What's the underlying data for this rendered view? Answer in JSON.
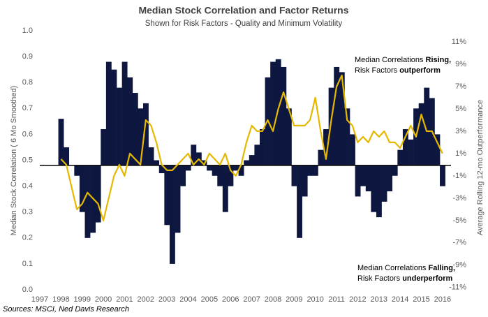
{
  "chart_data": {
    "type": "bar",
    "title": "Median Stock Correlation and Factor Returns",
    "subtitle": "Shown for Risk Factors - Quality and Minimum Volatility",
    "ylabel": "Median Stock Correlation ( 6 Mo Smoothed)",
    "y2label": "Average Rolling 12-mo Outperformance",
    "source": "Sources: MSCI, Ned Davis Research",
    "baseline": 0.48,
    "xlim": [
      1997,
      2016.4
    ],
    "xticks": [
      1997,
      1998,
      1999,
      2000,
      2001,
      2002,
      2003,
      2004,
      2005,
      2006,
      2007,
      2008,
      2009,
      2010,
      2011,
      2012,
      2013,
      2014,
      2015,
      2016
    ],
    "ylim": [
      0,
      1
    ],
    "yticks": [
      {
        "value": 0,
        "label": "0.0"
      },
      0.1,
      0.2,
      0.3,
      0.4,
      0.5,
      0.6,
      0.7,
      0.8,
      0.9,
      {
        "value": 1,
        "label": "1.0"
      }
    ],
    "y2lim": [
      -11.2,
      12
    ],
    "y2ticks": [
      {
        "value": -11,
        "label": "-11%"
      },
      {
        "value": -9,
        "label": "-9%"
      },
      {
        "value": -7,
        "label": "-7%"
      },
      {
        "value": -5,
        "label": "-5%"
      },
      {
        "value": -3,
        "label": "-3%"
      },
      {
        "value": -1,
        "label": "-1%"
      },
      {
        "value": 1,
        "label": "1%"
      },
      {
        "value": 3,
        "label": "3%"
      },
      {
        "value": 5,
        "label": "5%"
      },
      {
        "value": 7,
        "label": "7%"
      },
      {
        "value": 9,
        "label": "9%"
      },
      {
        "value": 11,
        "label": "11%"
      }
    ],
    "x": [
      1998,
      1998.25,
      1998.5,
      1998.75,
      1999,
      1999.25,
      1999.5,
      1999.75,
      2000,
      2000.25,
      2000.5,
      2000.75,
      2001,
      2001.25,
      2001.5,
      2001.75,
      2002,
      2002.25,
      2002.5,
      2002.75,
      2003,
      2003.25,
      2003.5,
      2003.75,
      2004,
      2004.25,
      2004.5,
      2004.75,
      2005,
      2005.25,
      2005.5,
      2005.75,
      2006,
      2006.25,
      2006.5,
      2006.75,
      2007,
      2007.25,
      2007.5,
      2007.75,
      2008,
      2008.25,
      2008.5,
      2008.75,
      2009,
      2009.25,
      2009.5,
      2009.75,
      2010,
      2010.25,
      2010.5,
      2010.75,
      2011,
      2011.25,
      2011.5,
      2011.75,
      2012,
      2012.25,
      2012.5,
      2012.75,
      2013,
      2013.25,
      2013.5,
      2013.75,
      2014,
      2014.25,
      2014.5,
      2014.75,
      2015,
      2015.25,
      2015.5,
      2015.75,
      2016
    ],
    "series": [
      {
        "name": "Median Stock Correlation",
        "type": "bar",
        "color": "#0d1740",
        "values": [
          0.66,
          0.55,
          0.48,
          0.44,
          0.3,
          0.2,
          0.22,
          0.26,
          0.62,
          0.88,
          0.85,
          0.78,
          0.88,
          0.82,
          0.76,
          0.7,
          0.72,
          0.55,
          0.5,
          0.45,
          0.25,
          0.1,
          0.22,
          0.4,
          0.46,
          0.56,
          0.53,
          0.5,
          0.46,
          0.44,
          0.4,
          0.3,
          0.4,
          0.46,
          0.44,
          0.5,
          0.52,
          0.56,
          0.62,
          0.82,
          0.88,
          0.89,
          0.86,
          0.7,
          0.4,
          0.2,
          0.36,
          0.44,
          0.44,
          0.54,
          0.62,
          0.78,
          0.86,
          0.84,
          0.7,
          0.6,
          0.36,
          0.4,
          0.38,
          0.3,
          0.28,
          0.34,
          0.38,
          0.44,
          0.54,
          0.62,
          0.58,
          0.7,
          0.72,
          0.78,
          0.74,
          0.6,
          0.4
        ]
      },
      {
        "name": "Average Rolling 12-mo Outperformance",
        "type": "line",
        "axis": "y2",
        "color": "#e5b800",
        "values": [
          0.5,
          0,
          -2,
          -4,
          -3.5,
          -2.5,
          -3,
          -3.5,
          -5,
          -3,
          -1,
          0,
          -1,
          1,
          0.5,
          0,
          4,
          3.5,
          2,
          0,
          -0.5,
          -0.5,
          0,
          0.5,
          1,
          0,
          0.5,
          0,
          1,
          0.5,
          0,
          1,
          -0.5,
          -1,
          0,
          2,
          3.5,
          3,
          3,
          4,
          3,
          5,
          6.5,
          5,
          3.5,
          3.5,
          3.5,
          4,
          6,
          3,
          0.5,
          4,
          7,
          8,
          4,
          3.5,
          2,
          2.5,
          2,
          3,
          2.5,
          3,
          2,
          2,
          1.5,
          2.5,
          3.5,
          2.5,
          4.5,
          3,
          3,
          2,
          1
        ]
      }
    ],
    "annotations": [
      {
        "lines": [
          [
            {
              "text": "Median Correlations ",
              "bold": false
            },
            {
              "text": "Rising,",
              "bold": true
            }
          ],
          [
            {
              "text": "Risk Factors ",
              "bold": false
            },
            {
              "text": "outperform",
              "bold": true
            }
          ]
        ]
      },
      {
        "lines": [
          [
            {
              "text": "Median Correlations ",
              "bold": false
            },
            {
              "text": "Falling,",
              "bold": true
            }
          ],
          [
            {
              "text": "Risk Factors ",
              "bold": false
            },
            {
              "text": "underperform",
              "bold": true
            }
          ]
        ]
      }
    ]
  }
}
